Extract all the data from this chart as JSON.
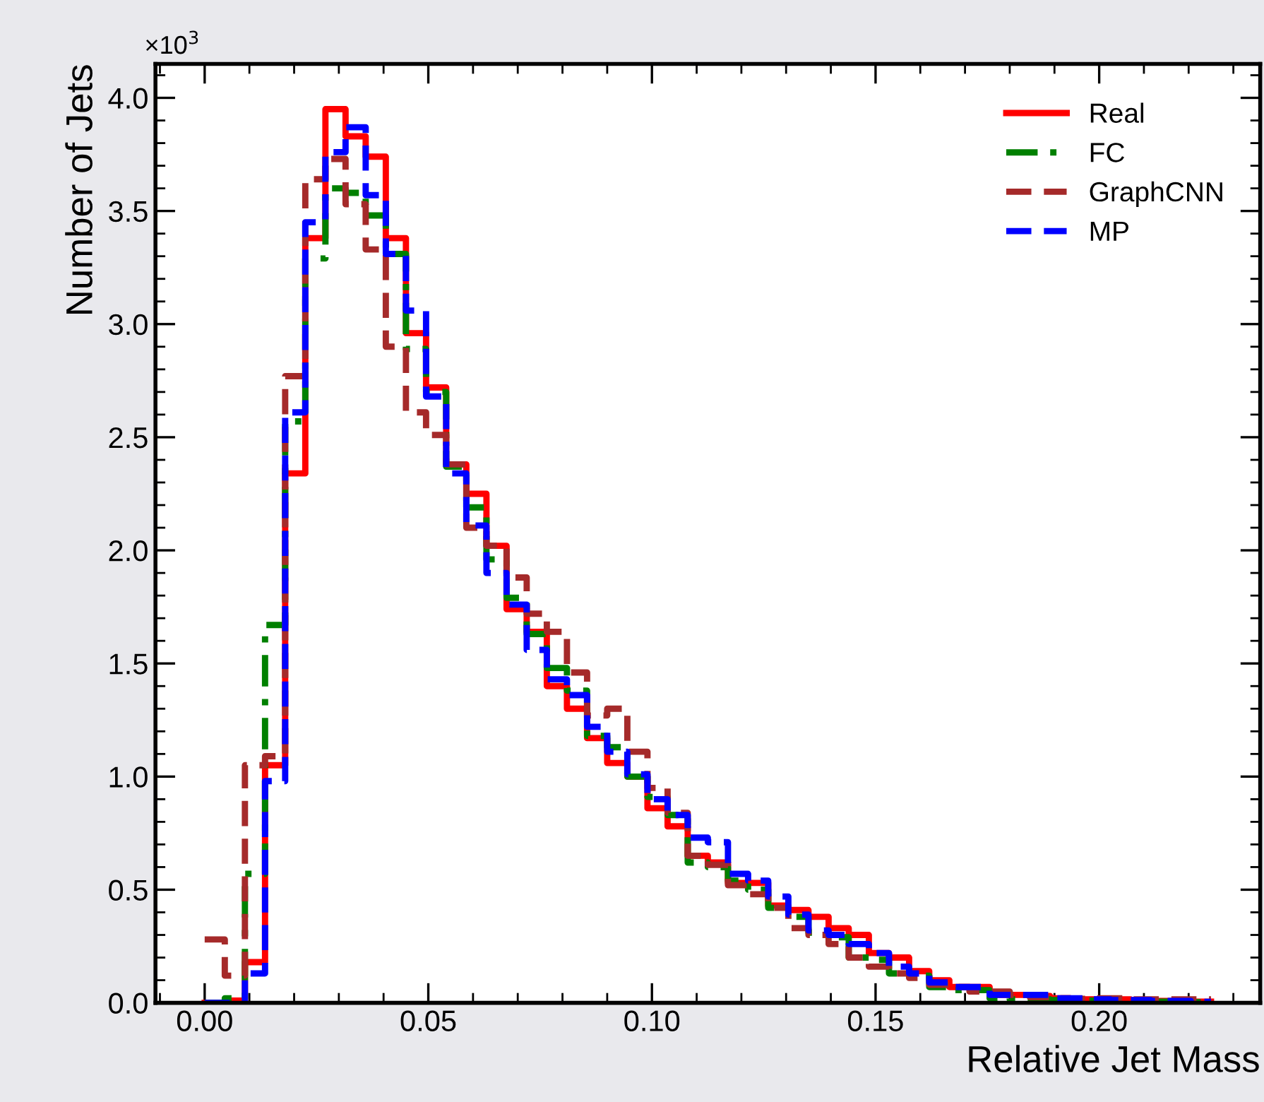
{
  "chart_data": {
    "type": "histogram",
    "xlabel": "Relative Jet Mass",
    "ylabel": "Number of Jets",
    "annotations": [
      "×10$^{3}$"
    ],
    "bins": [
      0.0,
      0.0045,
      0.009,
      0.0135,
      0.018,
      0.0225,
      0.027,
      0.0315,
      0.036,
      0.0405,
      0.045,
      0.0495,
      0.054,
      0.0585,
      0.063,
      0.0675,
      0.072,
      0.0765,
      0.081,
      0.0855,
      0.09,
      0.0945,
      0.099,
      0.1035,
      0.108,
      0.1125,
      0.117,
      0.1215,
      0.126,
      0.1305,
      0.135,
      0.1395,
      0.144,
      0.1485,
      0.153,
      0.1575,
      0.162,
      0.1665,
      0.171,
      0.1755,
      0.18,
      0.1845,
      0.189,
      0.1935,
      0.198,
      0.2025,
      0.207,
      0.2115,
      0.216,
      0.2205,
      0.225
    ],
    "series": [
      {
        "name": "Real",
        "color": "#ff0000",
        "line_style": "solid",
        "values": [
          0,
          0.01,
          0.18,
          1.05,
          2.34,
          3.38,
          3.95,
          3.83,
          3.74,
          3.38,
          2.96,
          2.72,
          2.38,
          2.25,
          2.02,
          1.74,
          1.64,
          1.4,
          1.3,
          1.17,
          1.06,
          1.0,
          0.86,
          0.78,
          0.65,
          0.62,
          0.53,
          0.53,
          0.43,
          0.41,
          0.38,
          0.33,
          0.3,
          0.22,
          0.2,
          0.14,
          0.1,
          0.07,
          0.07,
          0.035,
          0.035,
          0.03,
          0.02,
          0.015,
          0.015,
          0.015,
          0.012,
          0.008,
          0.008,
          0.005
        ]
      },
      {
        "name": "FC",
        "color": "#008000",
        "line_style": "dashdot",
        "values": [
          0,
          0.02,
          0.57,
          1.67,
          2.57,
          3.29,
          3.6,
          3.58,
          3.48,
          3.31,
          2.89,
          2.7,
          2.37,
          2.19,
          1.96,
          1.79,
          1.63,
          1.48,
          1.38,
          1.18,
          1.13,
          1.0,
          0.91,
          0.83,
          0.62,
          0.6,
          0.54,
          0.5,
          0.42,
          0.38,
          0.31,
          0.29,
          0.2,
          0.19,
          0.13,
          0.12,
          0.07,
          0.056,
          0.056,
          0.02,
          0.015,
          0.015,
          0.012,
          0.01,
          0.01,
          0.008,
          0.008,
          0.005,
          0.005,
          0.003
        ]
      },
      {
        "name": "GraphCNN",
        "color": "#a52a2a",
        "line_style": "dashed",
        "values": [
          0.28,
          0.12,
          1.05,
          1.09,
          2.77,
          3.64,
          3.73,
          3.53,
          3.33,
          2.9,
          2.61,
          2.51,
          2.38,
          2.1,
          2.02,
          1.88,
          1.72,
          1.64,
          1.46,
          1.27,
          1.3,
          1.11,
          0.95,
          0.84,
          0.65,
          0.61,
          0.52,
          0.48,
          0.42,
          0.33,
          0.3,
          0.26,
          0.2,
          0.16,
          0.13,
          0.11,
          0.08,
          0.07,
          0.05,
          0.05,
          0.035,
          0.025,
          0.02,
          0.018,
          0.02,
          0.02,
          0.015,
          0.015,
          0.015,
          0.015
        ]
      },
      {
        "name": "MP",
        "color": "#0000ff",
        "line_style": "dashed",
        "values": [
          0,
          0.0,
          0.13,
          0.98,
          2.61,
          3.45,
          3.76,
          3.87,
          3.57,
          3.31,
          3.06,
          2.68,
          2.34,
          2.11,
          1.9,
          1.76,
          1.56,
          1.43,
          1.36,
          1.22,
          1.11,
          1.01,
          0.9,
          0.83,
          0.73,
          0.71,
          0.57,
          0.54,
          0.47,
          0.39,
          0.32,
          0.3,
          0.26,
          0.22,
          0.16,
          0.13,
          0.09,
          0.07,
          0.07,
          0.035,
          0.035,
          0.035,
          0.02,
          0.02,
          0.015,
          0.012,
          0.012,
          0.008,
          0.008,
          0.004
        ]
      }
    ],
    "xlim": [
      -0.011,
      0.236
    ],
    "ylim": [
      0,
      4.15
    ],
    "xticks": [
      {
        "value": 0,
        "label": "0.00"
      },
      0.05,
      {
        "value": 0.1,
        "label": "0.10"
      },
      0.15,
      {
        "value": 0.2,
        "label": "0.20"
      }
    ],
    "yticks": [
      {
        "value": 0,
        "label": "0.0"
      },
      0.5,
      {
        "value": 1,
        "label": "1.0"
      },
      1.5,
      {
        "value": 2,
        "label": "2.0"
      },
      2.5,
      {
        "value": 3,
        "label": "3.0"
      },
      3.5,
      {
        "value": 4,
        "label": "4.0"
      }
    ],
    "legend": "top right",
    "grid": false
  }
}
